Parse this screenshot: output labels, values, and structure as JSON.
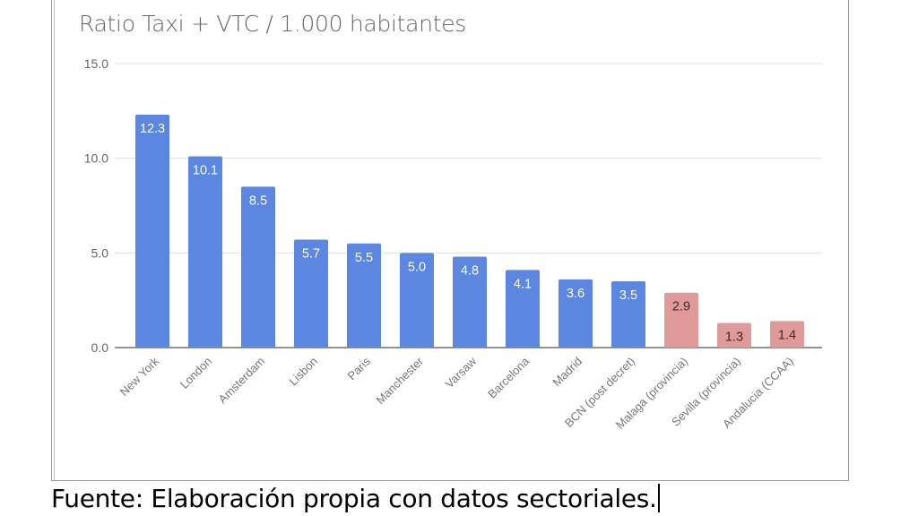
{
  "chart_data": {
    "type": "bar",
    "title": "Ratio Taxi + VTC / 1.000 habitantes",
    "xlabel": "",
    "ylabel": "",
    "ylim": [
      0,
      15
    ],
    "yticks": [
      "0.0",
      "5.0",
      "10.0",
      "15.0"
    ],
    "grid": true,
    "categories": [
      "New York",
      "London",
      "Amsterdam",
      "Lisbon",
      "Paris",
      "Manchester",
      "Varsaw",
      "Barcelona",
      "Madrid",
      "BCN (post decret)",
      "Malaga (provincia)",
      "Sevilla (provincia)",
      "Andalucia (CCAA)"
    ],
    "values": [
      12.3,
      10.1,
      8.5,
      5.7,
      5.5,
      5.0,
      4.8,
      4.1,
      3.6,
      3.5,
      2.9,
      1.3,
      1.4
    ],
    "data_labels": [
      "12.3",
      "10.1",
      "8.5",
      "5.7",
      "5.5",
      "5.0",
      "4.8",
      "4.1",
      "3.6",
      "3.5",
      "2.9",
      "1.3",
      "1.4"
    ],
    "bar_colors": [
      "#5b87e0",
      "#5b87e0",
      "#5b87e0",
      "#5b87e0",
      "#5b87e0",
      "#5b87e0",
      "#5b87e0",
      "#5b87e0",
      "#5b87e0",
      "#5b87e0",
      "#e09a9a",
      "#e09a9a",
      "#e09a9a"
    ],
    "label_colors": [
      "#ffffff",
      "#ffffff",
      "#ffffff",
      "#ffffff",
      "#ffffff",
      "#ffffff",
      "#ffffff",
      "#ffffff",
      "#ffffff",
      "#ffffff",
      "#3a2a2a",
      "#3a2a2a",
      "#3a2a2a"
    ]
  },
  "caption": "Fuente: Elaboración propia con datos sectoriales."
}
